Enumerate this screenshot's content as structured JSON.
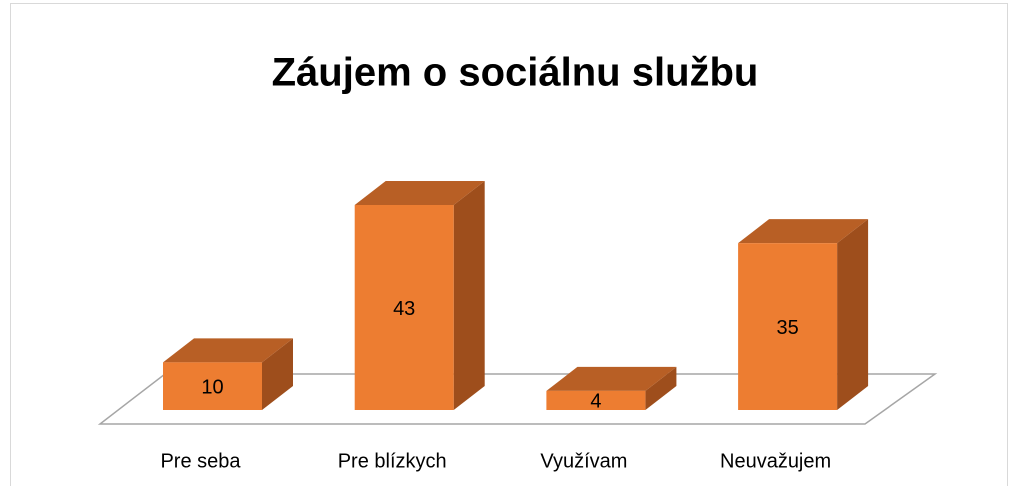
{
  "chart_data": {
    "type": "bar3d",
    "title": "Záujem o sociálnu službu",
    "categories": [
      "Pre seba",
      "Pre blízkych",
      "Využívam",
      "Neuvažujem"
    ],
    "values": [
      10,
      43,
      4,
      35
    ],
    "color": "#ed7d31"
  }
}
